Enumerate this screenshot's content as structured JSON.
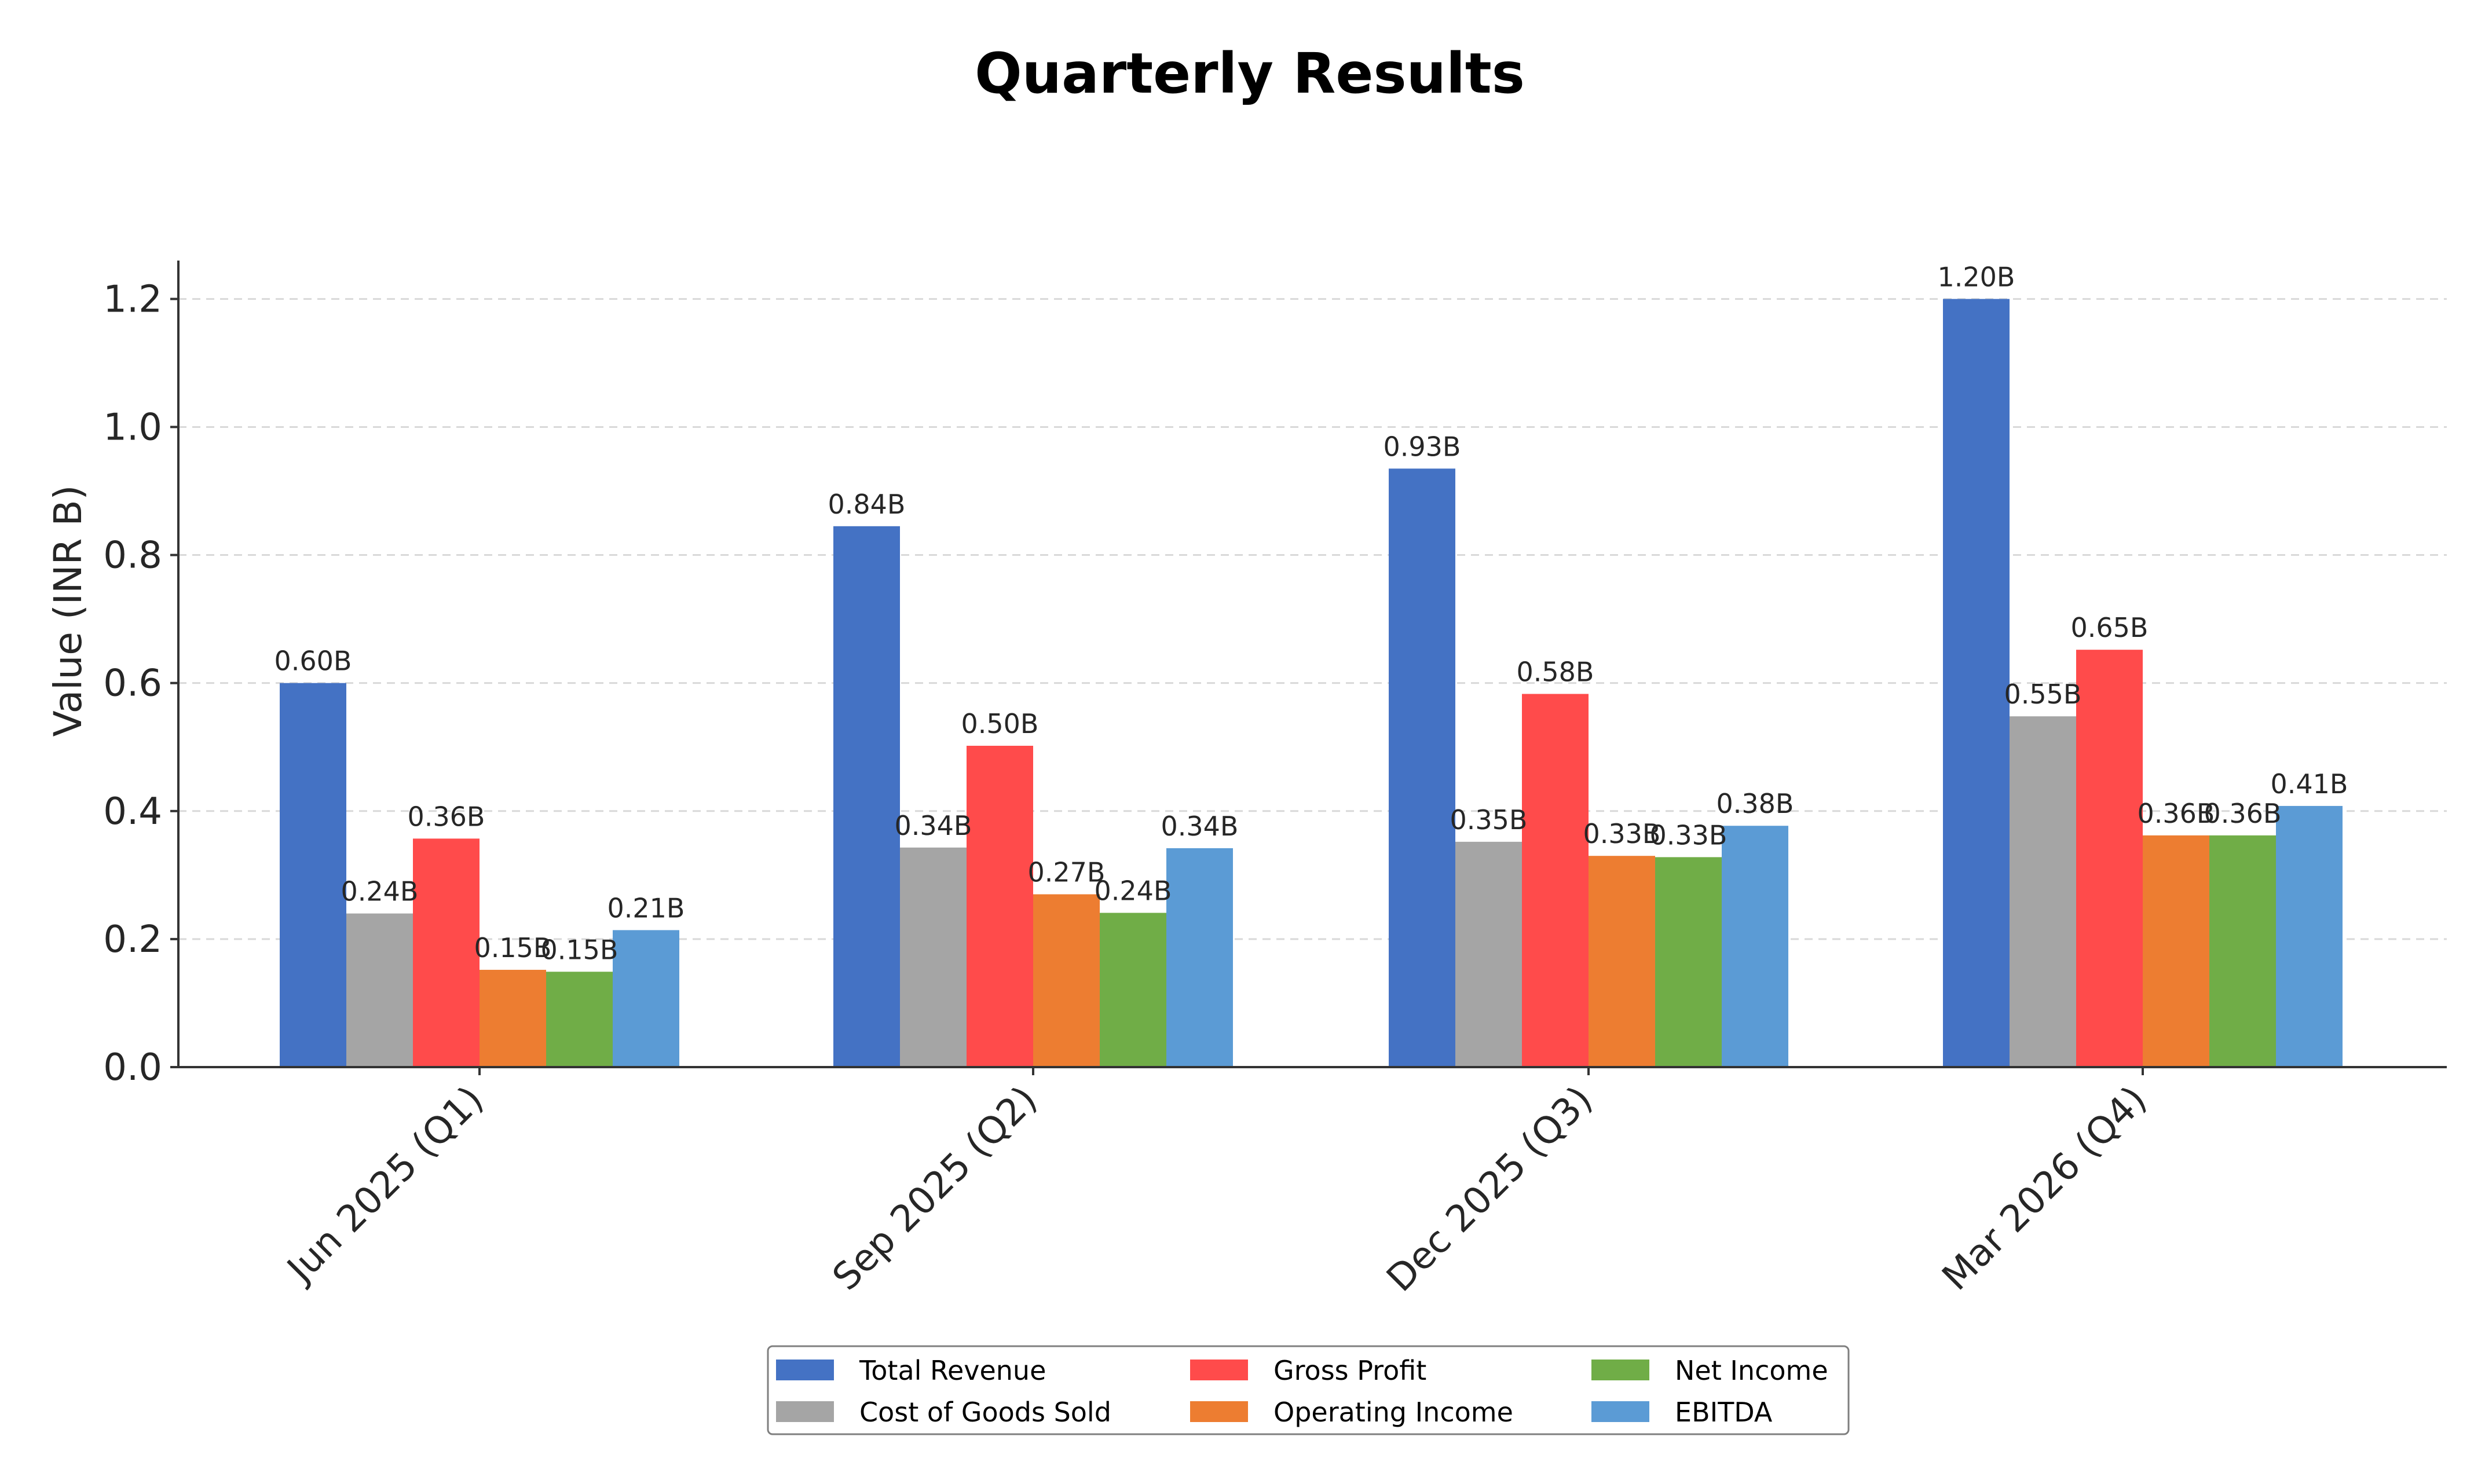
{
  "chart_data": {
    "type": "bar",
    "title": "Quarterly Results",
    "xlabel": "",
    "ylabel": "Value (INR B)",
    "ylim": [
      0,
      1.26
    ],
    "yticks": [
      "0.0",
      "0.2",
      "0.4",
      "0.6",
      "0.8",
      "1.0",
      "1.2"
    ],
    "ytick_values": [
      0,
      0.2,
      0.4,
      0.6,
      0.8,
      1.0,
      1.2
    ],
    "grid": "horizontal dashed",
    "legend_position": "bottom-center",
    "categories": [
      "Jun 2025 (Q1)",
      "Sep 2025 (Q2)",
      "Dec 2025 (Q3)",
      "Mar 2026 (Q4)"
    ],
    "series": [
      {
        "name": "Total Revenue",
        "color": "#4472C4",
        "values": [
          0.6,
          0.845,
          0.935,
          1.2
        ],
        "labels": [
          "0.60B",
          "0.84B",
          "0.93B",
          "1.20B"
        ]
      },
      {
        "name": "Cost of Goods Sold",
        "color": "#A5A5A5",
        "values": [
          0.24,
          0.343,
          0.352,
          0.548
        ],
        "labels": [
          "0.24B",
          "0.34B",
          "0.35B",
          "0.55B"
        ]
      },
      {
        "name": "Gross Profit",
        "color": "#FF4B4B",
        "values": [
          0.357,
          0.502,
          0.583,
          0.652
        ],
        "labels": [
          "0.36B",
          "0.50B",
          "0.58B",
          "0.65B"
        ]
      },
      {
        "name": "Operating Income",
        "color": "#ED7D31",
        "values": [
          0.152,
          0.27,
          0.33,
          0.362
        ],
        "labels": [
          "0.15B",
          "0.27B",
          "0.33B",
          "0.36B"
        ]
      },
      {
        "name": "Net Income",
        "color": "#70AD47",
        "values": [
          0.149,
          0.241,
          0.328,
          0.362
        ],
        "labels": [
          "0.15B",
          "0.24B",
          "0.33B",
          "0.36B"
        ]
      },
      {
        "name": "EBITDA",
        "color": "#5B9BD5",
        "values": [
          0.214,
          0.342,
          0.377,
          0.408
        ],
        "labels": [
          "0.21B",
          "0.34B",
          "0.38B",
          "0.41B"
        ]
      }
    ]
  }
}
